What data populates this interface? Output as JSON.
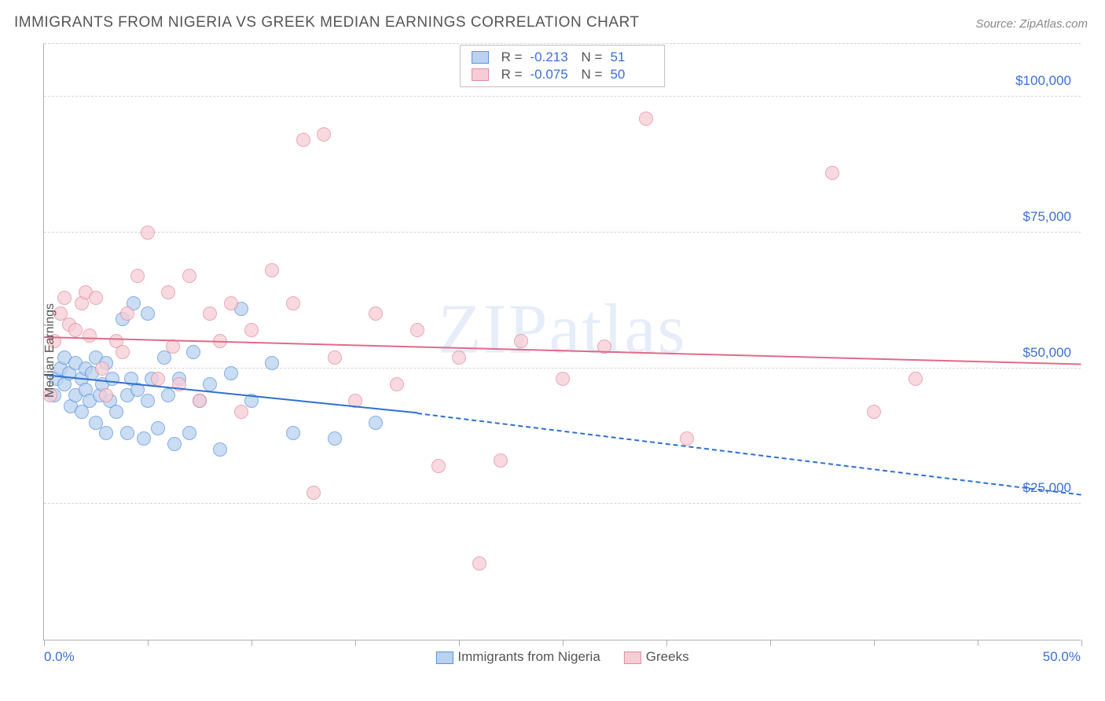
{
  "title": "IMMIGRANTS FROM NIGERIA VS GREEK MEDIAN EARNINGS CORRELATION CHART",
  "source": "Source: ZipAtlas.com",
  "watermark": "ZIPatlas",
  "axes": {
    "ylabel": "Median Earnings",
    "xlim": [
      0,
      50
    ],
    "ylim": [
      0,
      110000
    ],
    "x_min_label": "0.0%",
    "x_max_label": "50.0%",
    "yticks": [
      25000,
      50000,
      75000,
      100000
    ],
    "ytick_labels": [
      "$25,000",
      "$50,000",
      "$75,000",
      "$100,000"
    ],
    "xtick_positions": [
      0,
      5,
      10,
      15,
      20,
      25,
      30,
      35,
      40,
      45,
      50
    ],
    "grid_color": "#d5d5d5",
    "axis_color": "#b0b0b0",
    "tick_label_color": "#3b6fd6"
  },
  "series": [
    {
      "name": "Immigrants from Nigeria",
      "fill": "#b9d2f0",
      "stroke": "#5a93dd",
      "line_color": "#2f6fd0",
      "marker_radius": 9,
      "marker_opacity": 0.75,
      "stats": {
        "R": "-0.213",
        "N": "51"
      },
      "trend": {
        "x0": 0,
        "y0": 49000,
        "solid_until_x": 18,
        "y_at_solid_end": 42000,
        "x1": 50,
        "y1": 27000
      },
      "points": [
        [
          0.5,
          45000
        ],
        [
          0.6,
          48000
        ],
        [
          0.8,
          50000
        ],
        [
          1.0,
          47000
        ],
        [
          1.0,
          52000
        ],
        [
          1.2,
          49000
        ],
        [
          1.3,
          43000
        ],
        [
          1.5,
          45000
        ],
        [
          1.5,
          51000
        ],
        [
          1.8,
          48000
        ],
        [
          1.8,
          42000
        ],
        [
          2.0,
          50000
        ],
        [
          2.0,
          46000
        ],
        [
          2.2,
          44000
        ],
        [
          2.3,
          49000
        ],
        [
          2.5,
          52000
        ],
        [
          2.5,
          40000
        ],
        [
          2.7,
          45000
        ],
        [
          2.8,
          47000
        ],
        [
          3.0,
          51000
        ],
        [
          3.0,
          38000
        ],
        [
          3.2,
          44000
        ],
        [
          3.3,
          48000
        ],
        [
          3.5,
          42000
        ],
        [
          3.8,
          59000
        ],
        [
          4.0,
          45000
        ],
        [
          4.0,
          38000
        ],
        [
          4.2,
          48000
        ],
        [
          4.3,
          62000
        ],
        [
          4.5,
          46000
        ],
        [
          4.8,
          37000
        ],
        [
          5.0,
          44000
        ],
        [
          5.0,
          60000
        ],
        [
          5.2,
          48000
        ],
        [
          5.5,
          39000
        ],
        [
          5.8,
          52000
        ],
        [
          6.0,
          45000
        ],
        [
          6.3,
          36000
        ],
        [
          6.5,
          48000
        ],
        [
          7.0,
          38000
        ],
        [
          7.2,
          53000
        ],
        [
          7.5,
          44000
        ],
        [
          8.0,
          47000
        ],
        [
          8.5,
          35000
        ],
        [
          9.0,
          49000
        ],
        [
          9.5,
          61000
        ],
        [
          10.0,
          44000
        ],
        [
          11.0,
          51000
        ],
        [
          12.0,
          38000
        ],
        [
          14.0,
          37000
        ],
        [
          16.0,
          40000
        ]
      ]
    },
    {
      "name": "Greeks",
      "fill": "#f6cdd6",
      "stroke": "#e38ba0",
      "line_color": "#e06a8a",
      "marker_radius": 9,
      "marker_opacity": 0.75,
      "stats": {
        "R": "-0.075",
        "N": "50"
      },
      "trend": {
        "x0": 0,
        "y0": 56000,
        "solid_until_x": 50,
        "y_at_solid_end": 51000,
        "x1": 50,
        "y1": 51000
      },
      "points": [
        [
          0.3,
          45000
        ],
        [
          0.5,
          55000
        ],
        [
          0.8,
          60000
        ],
        [
          1.0,
          63000
        ],
        [
          1.2,
          58000
        ],
        [
          1.5,
          57000
        ],
        [
          1.8,
          62000
        ],
        [
          2.0,
          64000
        ],
        [
          2.2,
          56000
        ],
        [
          2.5,
          63000
        ],
        [
          2.8,
          50000
        ],
        [
          3.0,
          45000
        ],
        [
          3.5,
          55000
        ],
        [
          3.8,
          53000
        ],
        [
          4.0,
          60000
        ],
        [
          4.5,
          67000
        ],
        [
          5.0,
          75000
        ],
        [
          5.5,
          48000
        ],
        [
          6.0,
          64000
        ],
        [
          6.2,
          54000
        ],
        [
          6.5,
          47000
        ],
        [
          7.0,
          67000
        ],
        [
          7.5,
          44000
        ],
        [
          8.0,
          60000
        ],
        [
          8.5,
          55000
        ],
        [
          9.0,
          62000
        ],
        [
          9.5,
          42000
        ],
        [
          10.0,
          57000
        ],
        [
          11.0,
          68000
        ],
        [
          12.0,
          62000
        ],
        [
          12.5,
          92000
        ],
        [
          13.0,
          27000
        ],
        [
          13.5,
          93000
        ],
        [
          14.0,
          52000
        ],
        [
          15.0,
          44000
        ],
        [
          16.0,
          60000
        ],
        [
          17.0,
          47000
        ],
        [
          18.0,
          57000
        ],
        [
          19.0,
          32000
        ],
        [
          20.0,
          52000
        ],
        [
          21.0,
          14000
        ],
        [
          22.0,
          33000
        ],
        [
          23.0,
          55000
        ],
        [
          25.0,
          48000
        ],
        [
          27.0,
          54000
        ],
        [
          29.0,
          96000
        ],
        [
          31.0,
          37000
        ],
        [
          38.0,
          86000
        ],
        [
          40.0,
          42000
        ],
        [
          42.0,
          48000
        ]
      ]
    }
  ],
  "bottom_legend": [
    {
      "label": "Immigrants from Nigeria",
      "fill": "#b9d2f0",
      "stroke": "#5a93dd"
    },
    {
      "label": "Greeks",
      "fill": "#f6cdd6",
      "stroke": "#e38ba0"
    }
  ]
}
